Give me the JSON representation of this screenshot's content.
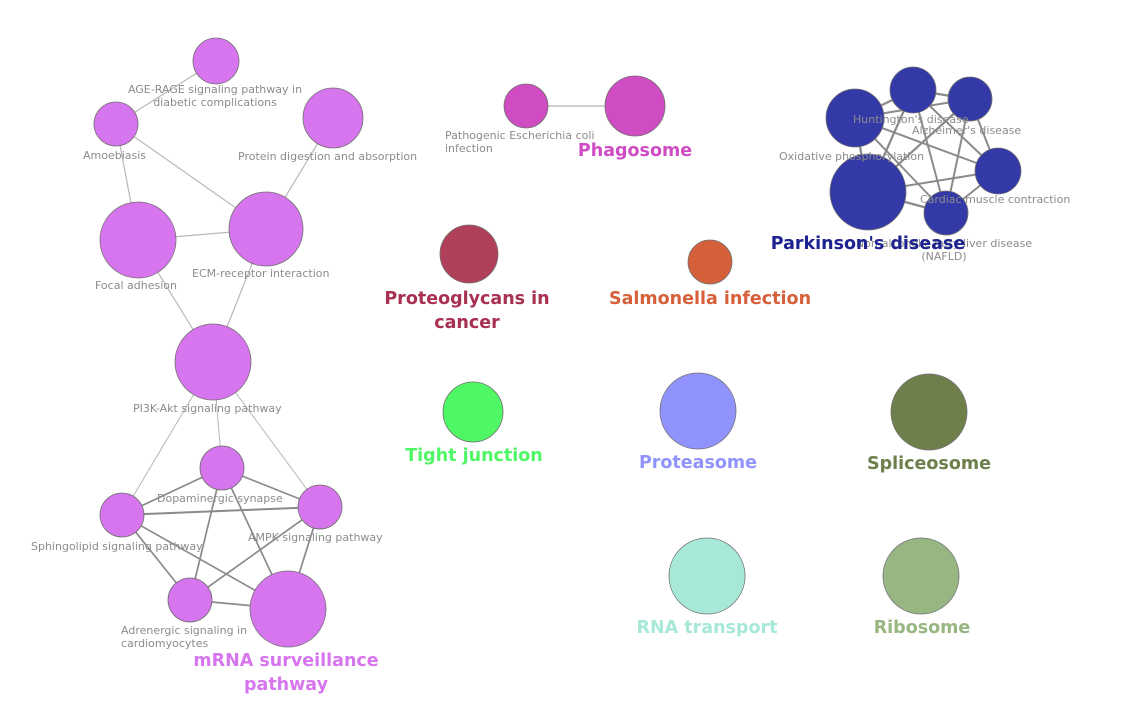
{
  "colors": {
    "violet": "#d775ee",
    "magenta": "#cf4cc3",
    "navy": "#333aa8",
    "crimson": "#b04059",
    "orange": "#d6603a",
    "green": "#50f765",
    "periwinkle": "#9093fb",
    "olive": "#6e7f4c",
    "mint": "#a7e8d8",
    "sage": "#97b681"
  },
  "nodes": [
    {
      "id": "age",
      "color": "violet",
      "label_lines": [
        "AGE-RAGE signaling pathway in",
        "diabetic complications"
      ]
    },
    {
      "id": "amoeb",
      "color": "violet",
      "label_lines": [
        "Amoebiasis"
      ]
    },
    {
      "id": "protdig",
      "color": "violet",
      "label_lines": [
        "Protein digestion and absorption"
      ]
    },
    {
      "id": "focal",
      "color": "violet",
      "label_lines": [
        "Focal adhesion"
      ]
    },
    {
      "id": "ecm",
      "color": "violet",
      "label_lines": [
        "ECM-receptor interaction"
      ]
    },
    {
      "id": "pi3k",
      "color": "violet",
      "label_lines": [
        "PI3K-Akt signaling pathway"
      ]
    },
    {
      "id": "dopa",
      "color": "violet",
      "label_lines": [
        "Dopaminergic synapse"
      ]
    },
    {
      "id": "sphingo",
      "color": "violet",
      "label_lines": [
        "Sphingolipid signaling pathway"
      ]
    },
    {
      "id": "ampk",
      "color": "violet",
      "label_lines": [
        "AMPK signaling pathway"
      ]
    },
    {
      "id": "adren",
      "color": "violet",
      "label_lines": [
        "Adrenergic signaling in",
        "cardiomyocytes"
      ]
    },
    {
      "id": "mrna",
      "color": "violet",
      "label_lines": []
    },
    {
      "id": "patheco",
      "color": "magenta",
      "label_lines": [
        "Pathogenic Escherichia coli",
        "infection"
      ]
    },
    {
      "id": "phago",
      "color": "magenta",
      "label_lines": []
    },
    {
      "id": "oxphos",
      "color": "navy",
      "label_lines": [
        "Oxidative phosphorylation"
      ]
    },
    {
      "id": "hunt",
      "color": "navy",
      "label_lines": [
        "Huntington's disease"
      ]
    },
    {
      "id": "alz",
      "color": "navy",
      "label_lines": [
        "Alzheimer's disease"
      ]
    },
    {
      "id": "cardiac",
      "color": "navy",
      "label_lines": [
        "Cardiac muscle contraction"
      ]
    },
    {
      "id": "parkinson",
      "color": "navy",
      "label_lines": []
    },
    {
      "id": "nafld",
      "color": "navy",
      "label_lines": [
        "Non-alcoholic fatty liver disease",
        "(NAFLD)"
      ]
    },
    {
      "id": "proteo",
      "color": "crimson",
      "label_lines": []
    },
    {
      "id": "salmo",
      "color": "orange",
      "label_lines": []
    },
    {
      "id": "tight",
      "color": "green",
      "label_lines": []
    },
    {
      "id": "proteasome",
      "color": "periwinkle",
      "label_lines": []
    },
    {
      "id": "splice",
      "color": "olive",
      "label_lines": []
    },
    {
      "id": "rnatrans",
      "color": "mint",
      "label_lines": []
    },
    {
      "id": "ribo",
      "color": "sage",
      "label_lines": []
    }
  ],
  "edges": [
    {
      "source": "age",
      "target": "amoeb",
      "weight": 1
    },
    {
      "source": "amoeb",
      "target": "focal",
      "weight": 1
    },
    {
      "source": "amoeb",
      "target": "ecm",
      "weight": 1
    },
    {
      "source": "protdig",
      "target": "ecm",
      "weight": 1
    },
    {
      "source": "focal",
      "target": "ecm",
      "weight": 1
    },
    {
      "source": "focal",
      "target": "pi3k",
      "weight": 1
    },
    {
      "source": "ecm",
      "target": "pi3k",
      "weight": 1
    },
    {
      "source": "pi3k",
      "target": "sphingo",
      "weight": 0.7
    },
    {
      "source": "pi3k",
      "target": "dopa",
      "weight": 0.7
    },
    {
      "source": "pi3k",
      "target": "ampk",
      "weight": 0.7
    },
    {
      "source": "dopa",
      "target": "sphingo",
      "weight": 2
    },
    {
      "source": "dopa",
      "target": "ampk",
      "weight": 2
    },
    {
      "source": "dopa",
      "target": "adren",
      "weight": 2
    },
    {
      "source": "dopa",
      "target": "mrna",
      "weight": 2
    },
    {
      "source": "sphingo",
      "target": "ampk",
      "weight": 2.5
    },
    {
      "source": "sphingo",
      "target": "adren",
      "weight": 2
    },
    {
      "source": "sphingo",
      "target": "mrna",
      "weight": 2
    },
    {
      "source": "ampk",
      "target": "adren",
      "weight": 2
    },
    {
      "source": "ampk",
      "target": "mrna",
      "weight": 2
    },
    {
      "source": "adren",
      "target": "mrna",
      "weight": 2
    },
    {
      "source": "patheco",
      "target": "phago",
      "weight": 1
    },
    {
      "source": "oxphos",
      "target": "hunt",
      "weight": 3
    },
    {
      "source": "oxphos",
      "target": "alz",
      "weight": 2.5
    },
    {
      "source": "oxphos",
      "target": "cardiac",
      "weight": 2.5
    },
    {
      "source": "oxphos",
      "target": "parkinson",
      "weight": 3
    },
    {
      "source": "oxphos",
      "target": "nafld",
      "weight": 2.5
    },
    {
      "source": "hunt",
      "target": "alz",
      "weight": 3
    },
    {
      "source": "hunt",
      "target": "parkinson",
      "weight": 3
    },
    {
      "source": "hunt",
      "target": "cardiac",
      "weight": 2.5
    },
    {
      "source": "hunt",
      "target": "nafld",
      "weight": 2.5
    },
    {
      "source": "alz",
      "target": "parkinson",
      "weight": 3
    },
    {
      "source": "alz",
      "target": "cardiac",
      "weight": 2.5
    },
    {
      "source": "alz",
      "target": "nafld",
      "weight": 2.5
    },
    {
      "source": "parkinson",
      "target": "cardiac",
      "weight": 2.5
    },
    {
      "source": "parkinson",
      "target": "nafld",
      "weight": 3
    },
    {
      "source": "cardiac",
      "target": "nafld",
      "weight": 2.5
    }
  ],
  "group_labels": [
    {
      "id": "phago",
      "color": "magenta",
      "lines": [
        "Phagosome"
      ]
    },
    {
      "id": "parkinson",
      "color": "navy",
      "lines": [
        "Parkinson's disease"
      ]
    },
    {
      "id": "proteo",
      "color": "crimson",
      "lines": [
        "Proteoglycans in",
        "cancer"
      ]
    },
    {
      "id": "salmo",
      "color": "orange",
      "lines": [
        "Salmonella infection"
      ]
    },
    {
      "id": "tight",
      "color": "green",
      "lines": [
        "Tight junction"
      ]
    },
    {
      "id": "proteasome",
      "color": "periwinkle",
      "lines": [
        "Proteasome"
      ]
    },
    {
      "id": "splice",
      "color": "olive",
      "lines": [
        "Spliceosome"
      ]
    },
    {
      "id": "rnatrans",
      "color": "mint",
      "lines": [
        "RNA transport"
      ]
    },
    {
      "id": "ribo",
      "color": "sage",
      "lines": [
        "Ribosome"
      ]
    },
    {
      "id": "mrna",
      "color": "violet",
      "lines": [
        "mRNA surveillance",
        "pathway"
      ]
    }
  ]
}
